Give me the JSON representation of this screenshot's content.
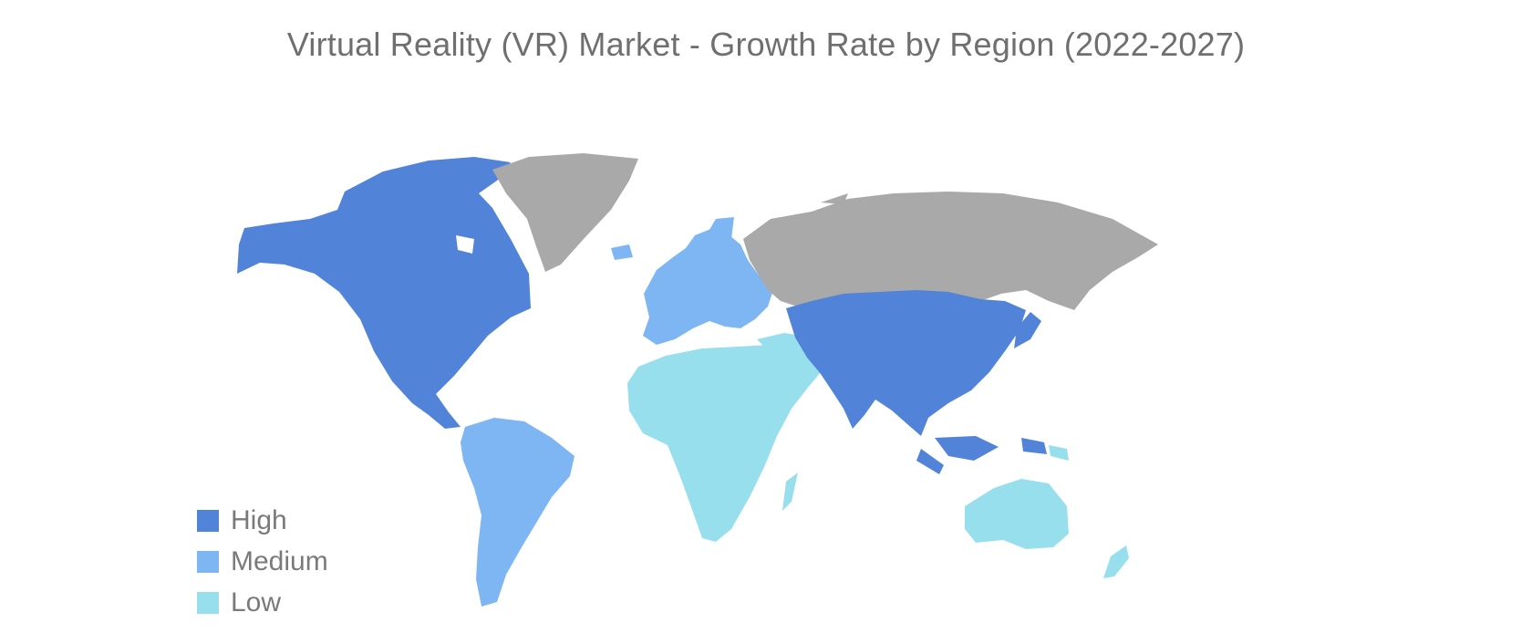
{
  "title": "Virtual Reality (VR) Market - Growth Rate by Region (2022-2027)",
  "colors": {
    "high": "#5183d8",
    "medium": "#7db6f2",
    "low": "#97dfec",
    "no_data": "#a9a9a9"
  },
  "legend": [
    {
      "label": "High",
      "color": "#5183d8"
    },
    {
      "label": "Medium",
      "color": "#7db6f2"
    },
    {
      "label": "Low",
      "color": "#97dfec"
    }
  ],
  "regions": {
    "north_america": "high",
    "asia_pacific": "high",
    "europe": "medium",
    "south_america": "medium",
    "middle_east_africa": "low",
    "oceania": "low",
    "greenland": "no_data",
    "russia": "no_data"
  }
}
